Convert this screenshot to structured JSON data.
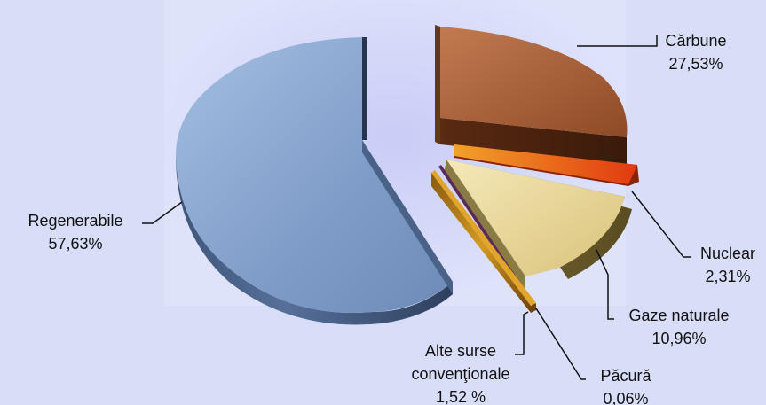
{
  "chart_data": {
    "type": "pie",
    "title": "",
    "style": "3d-exploded",
    "slices": [
      {
        "name": "Regenerabile",
        "value": 57.63,
        "label": "57,63%",
        "color": "#7f9cc8"
      },
      {
        "name": "Cărbune",
        "value": 27.53,
        "label": "27,53%",
        "color": "#a65a32"
      },
      {
        "name": "Nuclear",
        "value": 2.31,
        "label": "2,31%",
        "color": "#e0661a"
      },
      {
        "name": "Gaze naturale",
        "value": 10.96,
        "label": "10,96%",
        "color": "#e8d69a"
      },
      {
        "name": "Păcură",
        "value": 0.06,
        "label": "0,06%",
        "color": "#6a2a5a"
      },
      {
        "name": "Alte surse convenţionale",
        "value": 1.52,
        "label": "1,52 %",
        "color": "#c98a1a"
      }
    ],
    "labels": {
      "regenerabile": [
        "Regenerabile",
        "57,63%"
      ],
      "carbune": [
        "Cărbune",
        "27,53%"
      ],
      "nuclear": [
        "Nuclear",
        "2,31%"
      ],
      "gaze": [
        "Gaze naturale",
        "10,96%"
      ],
      "pacura": [
        "Păcură",
        "0,06%"
      ],
      "alte": [
        "Alte surse",
        "convenţionale",
        "1,52 %"
      ]
    }
  }
}
